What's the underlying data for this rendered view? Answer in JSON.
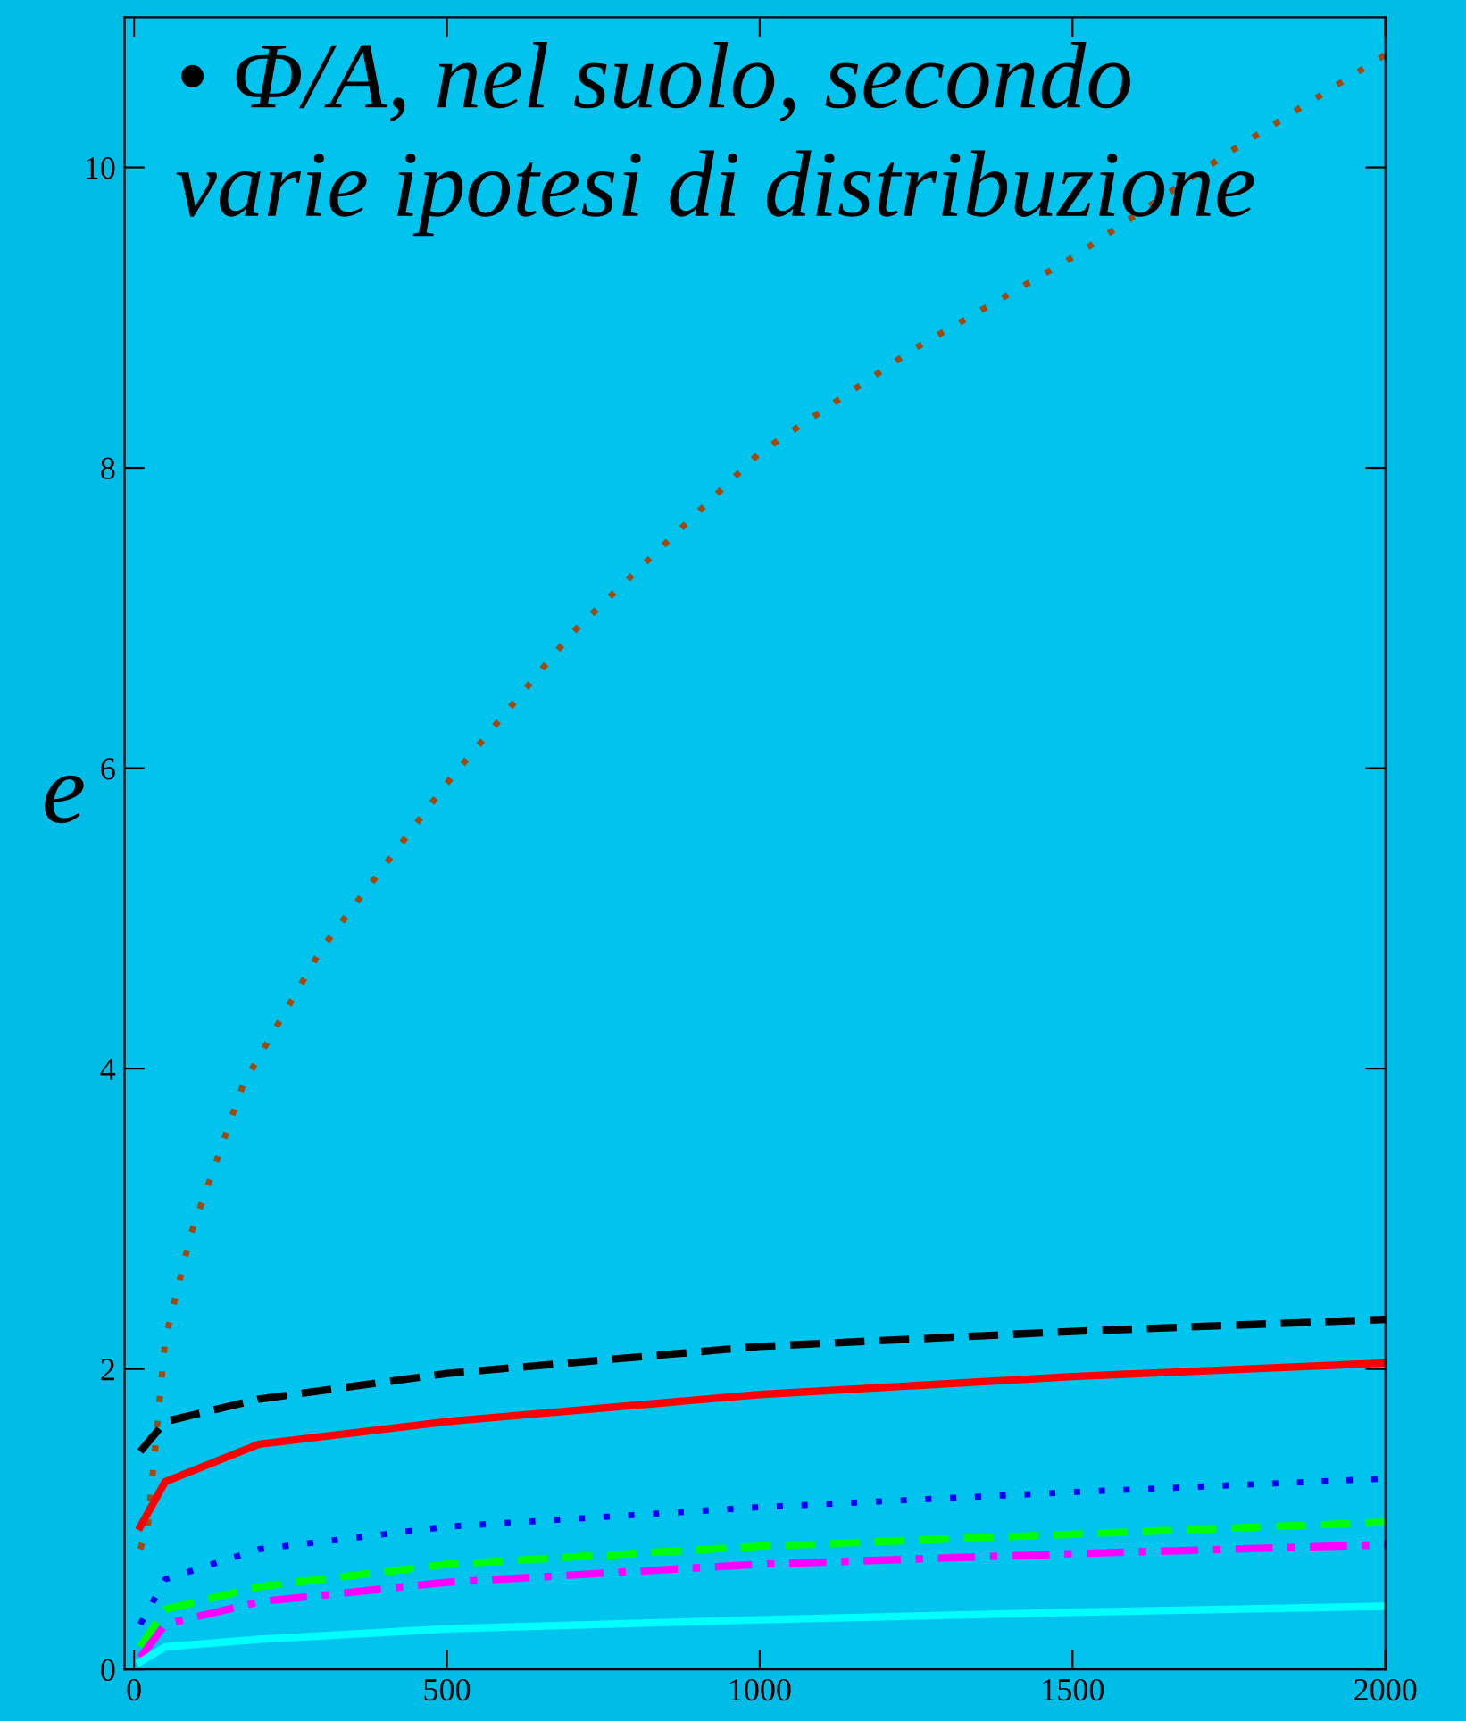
{
  "chart_data": {
    "type": "line",
    "title": "• Φ/A, nel suolo, secondo\nvarie ipotesi di distribuzione",
    "ylabel": "e",
    "xlim": [
      -15,
      2000
    ],
    "ylim": [
      0,
      11
    ],
    "xticks": [
      0,
      500,
      1000,
      1500,
      2000
    ],
    "yticks": [
      0,
      2,
      4,
      6,
      8,
      10
    ],
    "grid": false,
    "legend": false,
    "series": [
      {
        "color": "#a04a10",
        "line_style": "dotted",
        "x": [
          10,
          22,
          50,
          91,
          175,
          300,
          500,
          700,
          1000,
          1250,
          1500,
          1750,
          2000
        ],
        "values": [
          0.8,
          0.95,
          2.2,
          2.9,
          3.9,
          4.8,
          5.9,
          6.9,
          8.1,
          8.8,
          9.4,
          10.1,
          10.75
        ]
      },
      {
        "color": "#000000",
        "line_style": "dashed",
        "x": [
          10,
          50,
          200,
          500,
          1000,
          1500,
          2000
        ],
        "values": [
          1.45,
          1.65,
          1.8,
          1.97,
          2.15,
          2.25,
          2.33
        ]
      },
      {
        "color": "#ff0000",
        "line_style": "solid",
        "x": [
          10,
          50,
          200,
          500,
          1000,
          1500,
          2000
        ],
        "values": [
          0.95,
          1.25,
          1.5,
          1.65,
          1.83,
          1.95,
          2.04
        ]
      },
      {
        "color": "#0000ff",
        "line_style": "dotted",
        "x": [
          10,
          50,
          200,
          500,
          1000,
          1500,
          2000
        ],
        "values": [
          0.3,
          0.6,
          0.8,
          0.95,
          1.08,
          1.18,
          1.27
        ]
      },
      {
        "color": "#00ff00",
        "line_style": "dashed",
        "x": [
          10,
          50,
          200,
          500,
          1000,
          1500,
          2000
        ],
        "values": [
          0.15,
          0.4,
          0.55,
          0.7,
          0.82,
          0.9,
          0.98
        ]
      },
      {
        "color": "#ff00ff",
        "line_style": "dashdot",
        "x": [
          10,
          50,
          200,
          500,
          1000,
          1500,
          2000
        ],
        "values": [
          0.08,
          0.3,
          0.45,
          0.58,
          0.7,
          0.77,
          0.83
        ]
      },
      {
        "color": "#00ffff",
        "line_style": "solid",
        "x": [
          10,
          50,
          200,
          500,
          1000,
          1500,
          2000
        ],
        "values": [
          0.05,
          0.15,
          0.2,
          0.27,
          0.33,
          0.38,
          0.42
        ]
      }
    ]
  }
}
